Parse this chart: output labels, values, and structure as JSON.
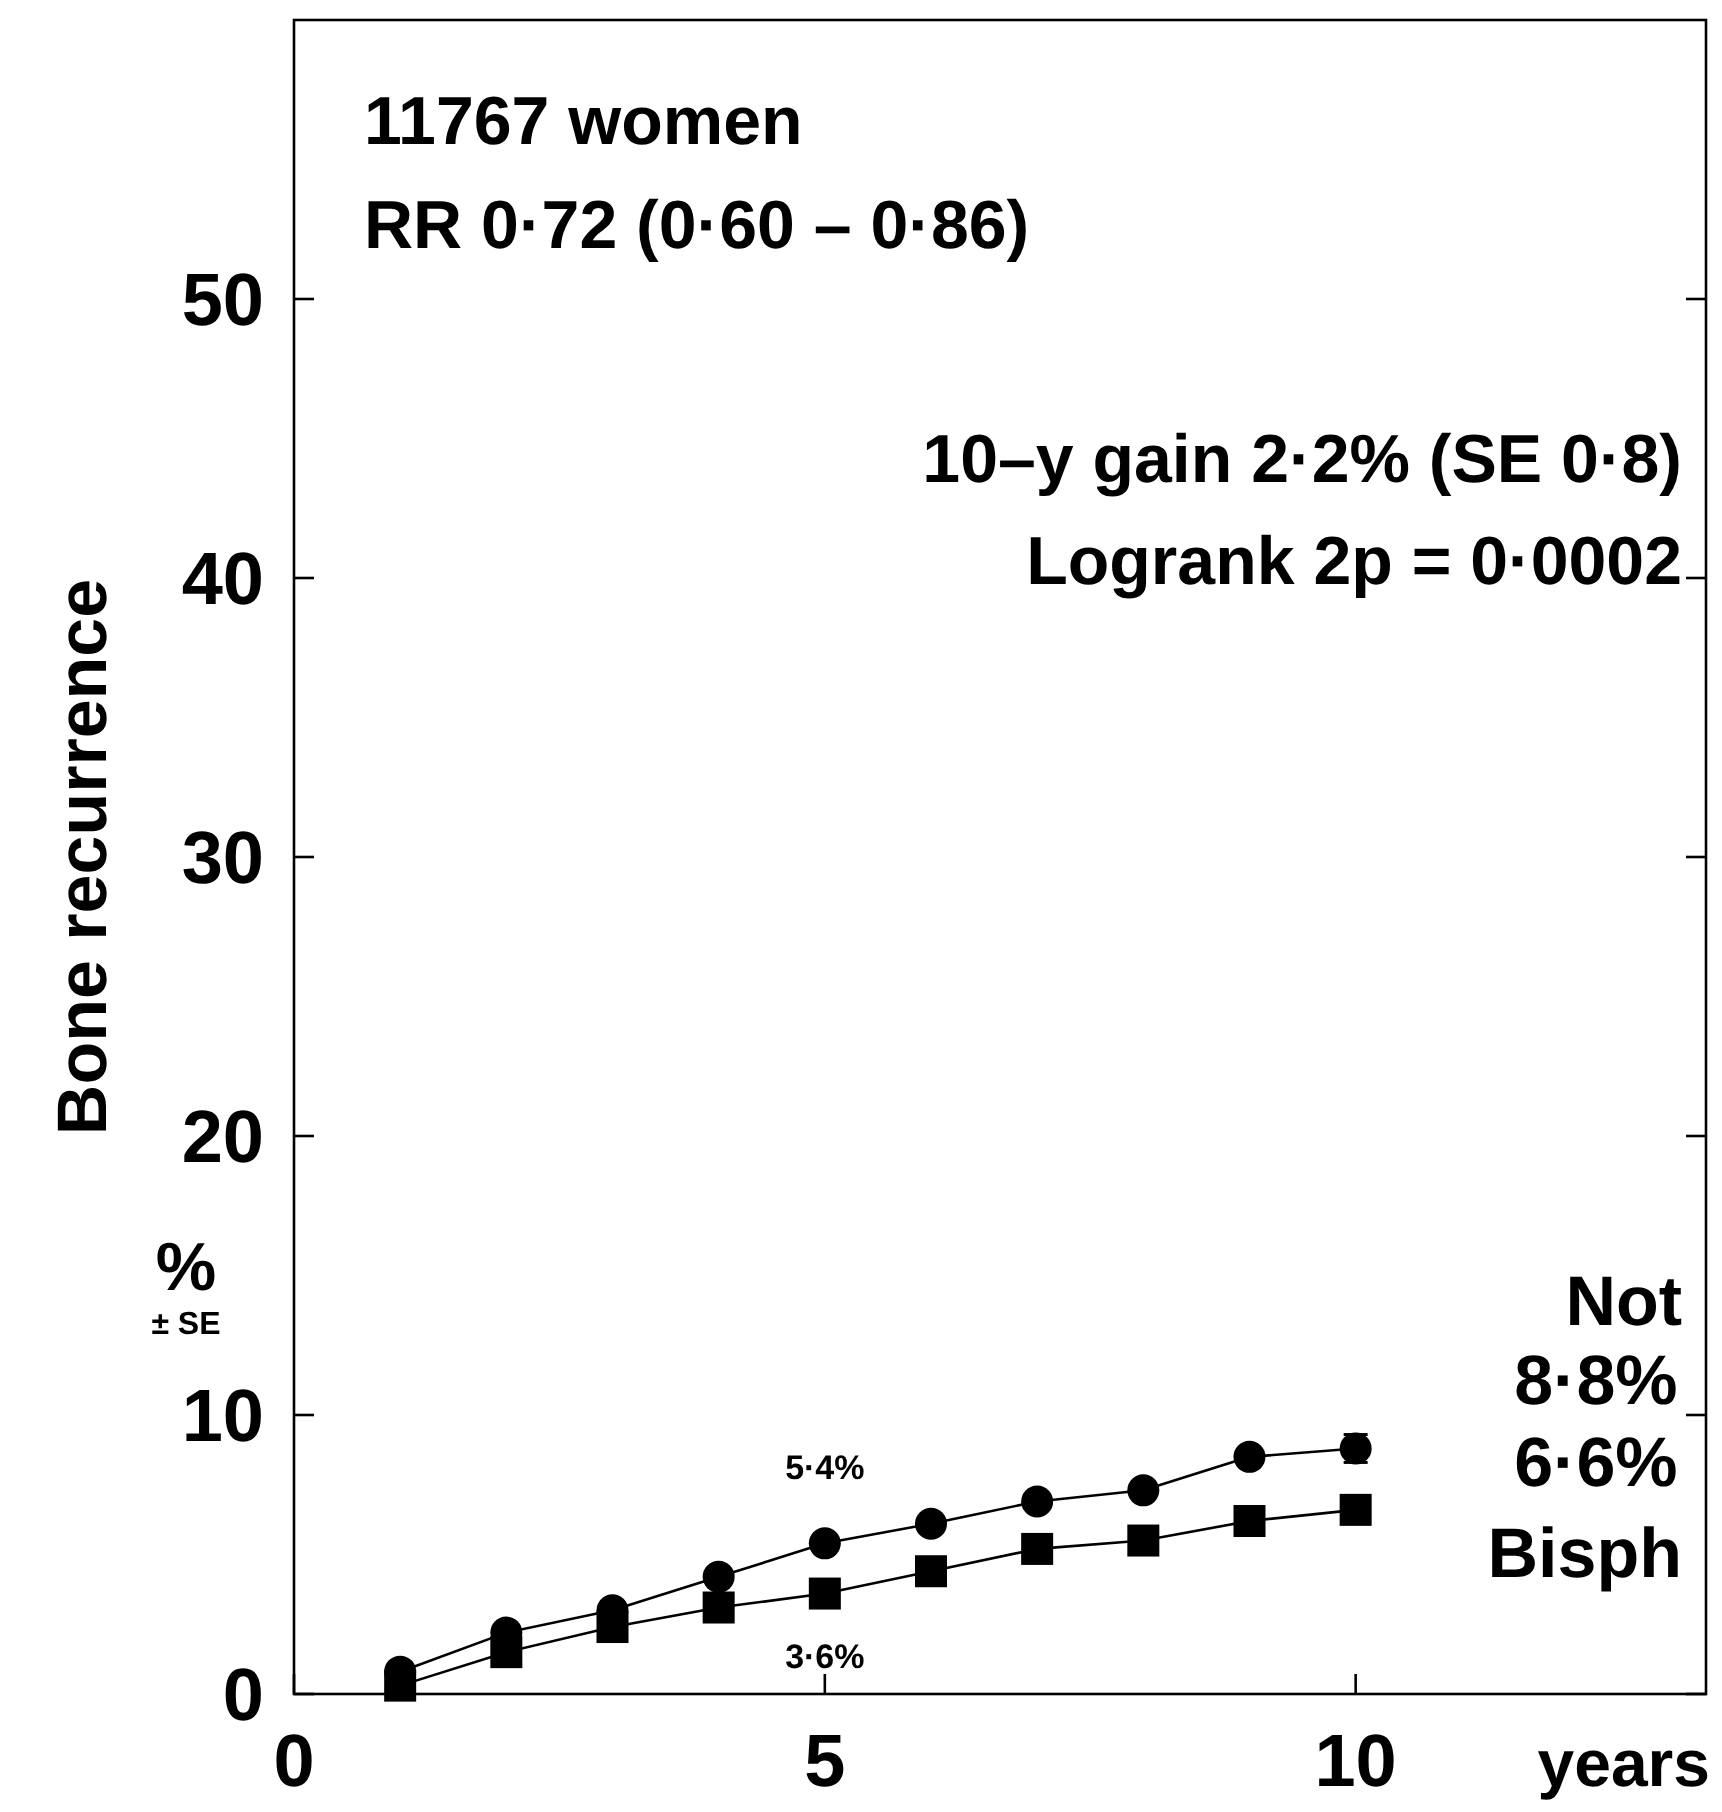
{
  "chart_data": {
    "type": "line",
    "ylabel": "Bone recurrence",
    "xlabel": "years",
    "annotations": [
      "11767 women",
      "RR 0·72 (0·60 – 0·86)",
      "10–y gain 2·2% (SE 0·8)",
      "Logrank 2p = 0·0002",
      "%",
      "± SE",
      "5·4%",
      "3·6%",
      "8·8%",
      "6·6%"
    ],
    "x": [
      1,
      2,
      3,
      4,
      5,
      6,
      7,
      8,
      9,
      10
    ],
    "series": [
      {
        "name": "Not",
        "color": "#000000",
        "marker": "circle",
        "values": [
          0.8,
          2.2,
          3.0,
          4.2,
          5.4,
          6.1,
          6.9,
          7.3,
          8.5,
          8.8
        ],
        "errors": [
          null,
          null,
          null,
          null,
          null,
          null,
          null,
          null,
          null,
          0.5
        ]
      },
      {
        "name": "Bisph",
        "color": "#000000",
        "marker": "square",
        "values": [
          0.3,
          1.5,
          2.4,
          3.1,
          3.6,
          4.4,
          5.2,
          5.5,
          6.2,
          6.6
        ],
        "errors": [
          null,
          null,
          null,
          null,
          null,
          null,
          null,
          null,
          null,
          0.4
        ]
      }
    ],
    "xlim": [
      0,
      13.3
    ],
    "ylim": [
      0,
      60
    ],
    "xticks": [
      0,
      5,
      10
    ],
    "yticks": [
      0,
      10,
      20,
      30,
      40,
      50
    ],
    "grid": false,
    "line_style": "solid"
  }
}
